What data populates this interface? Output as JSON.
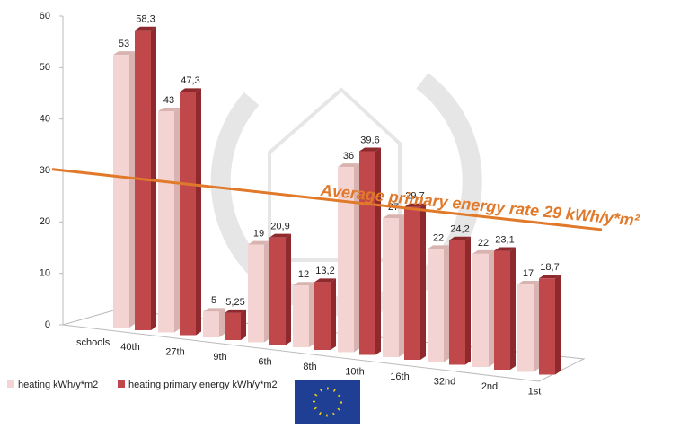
{
  "chart_data": {
    "type": "bar3d",
    "x_label": "schools",
    "categories": [
      "40th",
      "27th",
      "9th",
      "6th",
      "8th",
      "10th",
      "16th",
      "32nd",
      "2nd",
      "1st"
    ],
    "series": [
      {
        "name": "heating kWh/y*m2",
        "color": "#f4d4d2",
        "values": [
          53,
          43,
          5,
          19,
          12,
          36,
          27,
          22,
          22,
          17
        ]
      },
      {
        "name": "heating primary energy kWh/y*m2",
        "color": "#c0474a",
        "values": [
          58.3,
          47.3,
          5.25,
          20.9,
          13.2,
          39.6,
          29.7,
          24.2,
          23.1,
          18.7
        ],
        "value_labels": [
          "58,3",
          "47,3",
          "5,25",
          "20,9",
          "13,2",
          "39,6",
          "29,7",
          "24,2",
          "23,1",
          "18,7"
        ]
      }
    ],
    "ylim": [
      0,
      60
    ],
    "yticks": [
      0,
      10,
      20,
      30,
      40,
      50,
      60
    ],
    "reference_line": {
      "value": 29,
      "label": "Average primary energy rate 29 kWh/y*m²",
      "color": "#e07a2a"
    },
    "legend": "bottom-left"
  }
}
